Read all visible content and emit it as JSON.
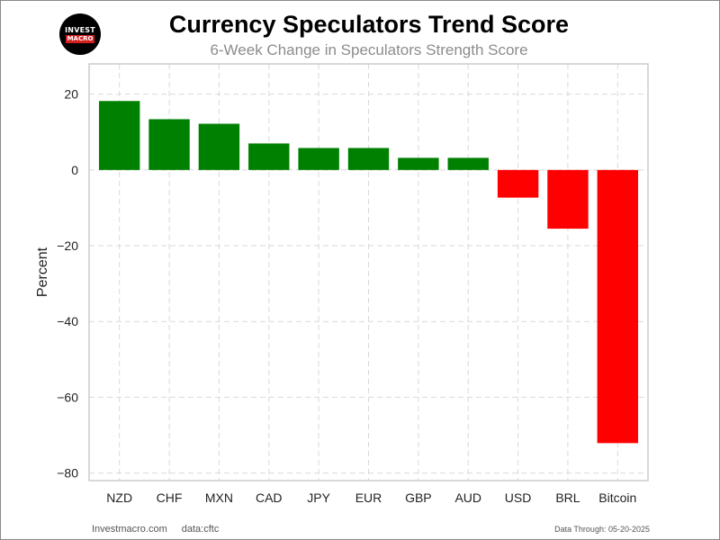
{
  "logo": {
    "line1": "INVEST",
    "line2": "MACRO"
  },
  "header": {
    "title": "Currency Speculators Trend Score",
    "subtitle": "6-Week Change in Speculators Strength Score"
  },
  "footer": {
    "site": "Investmacro.com",
    "source": "data:cftc",
    "data_through": "Data Through: 05-20-2025"
  },
  "colors": {
    "positive": "#008000",
    "negative": "#ff0000",
    "grid": "#d9d9d9",
    "axes": "#cccccc"
  },
  "chart_data": {
    "type": "bar",
    "title": "Currency Speculators Trend Score",
    "subtitle": "6-Week Change in Speculators Strength Score",
    "xlabel": "",
    "ylabel": "Percent",
    "categories": [
      "NZD",
      "CHF",
      "MXN",
      "CAD",
      "JPY",
      "EUR",
      "GBP",
      "AUD",
      "USD",
      "BRL",
      "Bitcoin"
    ],
    "values": [
      18.2,
      13.4,
      12.2,
      7.0,
      5.8,
      5.8,
      3.2,
      3.2,
      -7.3,
      -15.5,
      -72.1
    ],
    "ylim": [
      -82,
      28
    ],
    "yticks": [
      20,
      0,
      -20,
      -40,
      -60,
      -80
    ],
    "ytick_labels": [
      "20",
      "0",
      "−20",
      "−40",
      "−60",
      "−80"
    ],
    "grid": true
  }
}
